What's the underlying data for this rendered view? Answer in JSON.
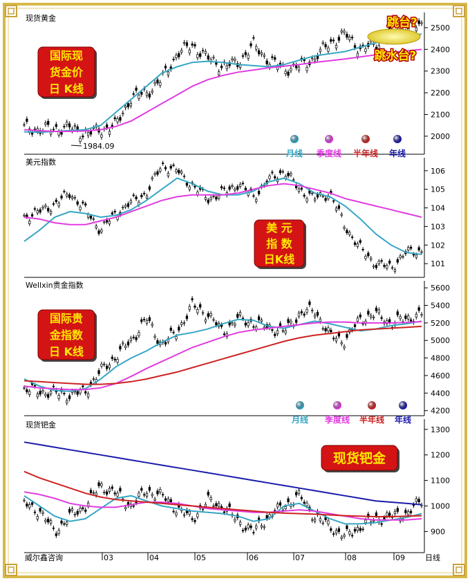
{
  "chart_data": [
    {
      "type": "line",
      "title": "现货黄金",
      "label_box": [
        "国际现",
        "货金价",
        "日 K线"
      ],
      "annotation": "1984.09",
      "question_top": "跳台?",
      "question_bottom": "跳水台?",
      "ylim": [
        1920,
        2570
      ],
      "yticks": [
        "2000",
        "2100",
        "2200",
        "2300",
        "2400",
        "2500"
      ],
      "series": [
        {
          "name": "月线",
          "color": "#35a6c4",
          "values": [
            2020,
            2018,
            2022,
            2026,
            2030,
            2050,
            2110,
            2170,
            2230,
            2290,
            2320,
            2340,
            2345,
            2340,
            2330,
            2325,
            2320,
            2330,
            2350,
            2370,
            2380,
            2390,
            2410,
            2430,
            2450,
            2460,
            2470
          ]
        },
        {
          "name": "季度线",
          "color": "#e13be0",
          "values": [
            2030,
            2025,
            2022,
            2022,
            2024,
            2030,
            2045,
            2070,
            2110,
            2150,
            2190,
            2230,
            2260,
            2280,
            2295,
            2305,
            2315,
            2322,
            2330,
            2340,
            2348,
            2356,
            2365,
            2375,
            2385,
            2393,
            2400
          ]
        },
        {
          "name": "半年线",
          "color": "#cc2222",
          "values": []
        },
        {
          "name": "年线",
          "color": "#1a1aaa",
          "values": []
        }
      ],
      "price": [
        2040,
        2030,
        2035,
        2040,
        2010,
        2030,
        2050,
        2180,
        2200,
        2260,
        2380,
        2420,
        2360,
        2320,
        2340,
        2420,
        2350,
        2310,
        2320,
        2360,
        2430,
        2470,
        2400,
        2420,
        2480,
        2500,
        2510
      ]
    },
    {
      "type": "line",
      "title": "美元指数",
      "label_box": [
        "美 元",
        "指 数",
        "日K线"
      ],
      "ylim": [
        100.3,
        106.7
      ],
      "yticks": [
        "101",
        "102",
        "103",
        "104",
        "105",
        "106"
      ],
      "series": [
        {
          "name": "月线",
          "color": "#35a6c4",
          "values": [
            102.2,
            102.8,
            103.5,
            103.8,
            103.7,
            103.5,
            103.6,
            103.9,
            104.4,
            105.0,
            105.6,
            105.3,
            104.9,
            104.7,
            104.7,
            104.9,
            105.4,
            105.6,
            105.3,
            104.8,
            104.6,
            104.1,
            103.4,
            102.6,
            102.0,
            101.6,
            101.5
          ]
        },
        {
          "name": "季度线",
          "color": "#e13be0",
          "values": [
            103.5,
            103.4,
            103.2,
            103.1,
            103.1,
            103.3,
            103.5,
            103.8,
            104.1,
            104.4,
            104.6,
            104.7,
            104.7,
            104.7,
            104.8,
            105.0,
            105.2,
            105.3,
            105.2,
            105.0,
            104.8,
            104.5,
            104.3,
            104.1,
            103.9,
            103.7,
            103.5
          ]
        }
      ],
      "price": [
        103.5,
        103.8,
        104.2,
        104.8,
        103.9,
        102.8,
        103.7,
        104.3,
        104.8,
        106.3,
        106.0,
        105.2,
        104.5,
        104.8,
        105.3,
        104.6,
        105.5,
        106.0,
        105.0,
        104.5,
        104.8,
        103.0,
        101.8,
        101.0,
        100.8,
        101.6,
        101.7
      ]
    },
    {
      "type": "line",
      "title": "Wellxin贵金指数",
      "label_box": [
        "国际贵",
        "金指数",
        "日 K线"
      ],
      "ylim": [
        4150,
        5680
      ],
      "yticks": [
        "4200",
        "4400",
        "4600",
        "4800",
        "5000",
        "5200",
        "5400",
        "5600"
      ],
      "series": [
        {
          "name": "月线",
          "color": "#35a6c4",
          "values": [
            4560,
            4480,
            4430,
            4420,
            4450,
            4560,
            4700,
            4800,
            4880,
            4980,
            5060,
            5090,
            5130,
            5190,
            5240,
            5230,
            5160,
            5140,
            5180,
            5220,
            5190,
            5150,
            5110,
            5130,
            5170,
            5190,
            5220
          ]
        },
        {
          "name": "季度线",
          "color": "#e13be0",
          "values": [
            4480,
            4460,
            4450,
            4440,
            4440,
            4460,
            4510,
            4590,
            4680,
            4760,
            4840,
            4920,
            4980,
            5040,
            5090,
            5120,
            5140,
            5160,
            5180,
            5200,
            5210,
            5210,
            5200,
            5200,
            5200,
            5205,
            5215
          ]
        },
        {
          "name": "半年线",
          "color": "#cc2222",
          "values": [
            4540,
            4530,
            4520,
            4510,
            4500,
            4500,
            4510,
            4530,
            4560,
            4600,
            4640,
            4690,
            4740,
            4790,
            4840,
            4890,
            4940,
            4990,
            5030,
            5060,
            5080,
            5100,
            5120,
            5130,
            5140,
            5150,
            5160
          ]
        }
      ],
      "price": [
        4440,
        4420,
        4400,
        4380,
        4420,
        4650,
        4820,
        5000,
        5250,
        4950,
        5100,
        5400,
        5300,
        5100,
        5250,
        5200,
        5150,
        5100,
        5300,
        5350,
        5050,
        5000,
        5250,
        5300,
        5200,
        5250,
        5300
      ]
    },
    {
      "type": "line",
      "title": "现货钯金",
      "label_box": [
        "现货钯金"
      ],
      "ylim": [
        820,
        1340
      ],
      "yticks": [
        "900",
        "1000",
        "1100",
        "1200",
        "1300"
      ],
      "xticks": [
        "03",
        "04",
        "05",
        "06",
        "07",
        "08",
        "09"
      ],
      "xlabel_right": "日线",
      "footer": "威尔鑫咨询",
      "series": [
        {
          "name": "月线",
          "color": "#35a6c4",
          "values": [
            1040,
            1000,
            960,
            940,
            950,
            990,
            1030,
            1040,
            1020,
            1000,
            990,
            980,
            975,
            970,
            960,
            940,
            950,
            1000,
            1010,
            980,
            950,
            930,
            930,
            935,
            945,
            955,
            970
          ]
        },
        {
          "name": "季度线",
          "color": "#e13be0",
          "values": [
            1055,
            1045,
            1030,
            1010,
            1000,
            995,
            995,
            1005,
            1015,
            1015,
            1010,
            1000,
            990,
            985,
            980,
            975,
            975,
            980,
            985,
            980,
            970,
            960,
            950,
            945,
            945,
            945,
            950
          ]
        },
        {
          "name": "半年线",
          "color": "#cc2222",
          "values": [
            1135,
            1110,
            1090,
            1070,
            1050,
            1035,
            1025,
            1020,
            1015,
            1010,
            1005,
            1000,
            995,
            990,
            985,
            980,
            975,
            972,
            970,
            968,
            965,
            962,
            960,
            958,
            958,
            960,
            962
          ]
        },
        {
          "name": "年线",
          "color": "#1a1aaa",
          "values": [
            1250,
            1240,
            1230,
            1220,
            1210,
            1200,
            1190,
            1180,
            1170,
            1160,
            1150,
            1140,
            1130,
            1120,
            1110,
            1100,
            1090,
            1080,
            1070,
            1060,
            1050,
            1040,
            1030,
            1020,
            1015,
            1010,
            1005
          ]
        }
      ],
      "price": [
        1010,
        980,
        900,
        960,
        1000,
        1080,
        1050,
        1000,
        1060,
        1040,
        990,
        950,
        1020,
        1000,
        940,
        900,
        960,
        1000,
        1040,
        960,
        920,
        880,
        920,
        950,
        960,
        970,
        1020
      ]
    }
  ],
  "legend": [
    {
      "label": "月线",
      "color": "#35a6c4"
    },
    {
      "label": "季度线",
      "color": "#e13be0"
    },
    {
      "label": "半年线",
      "color": "#cc2222"
    },
    {
      "label": "年线",
      "color": "#1a1aaa"
    }
  ]
}
